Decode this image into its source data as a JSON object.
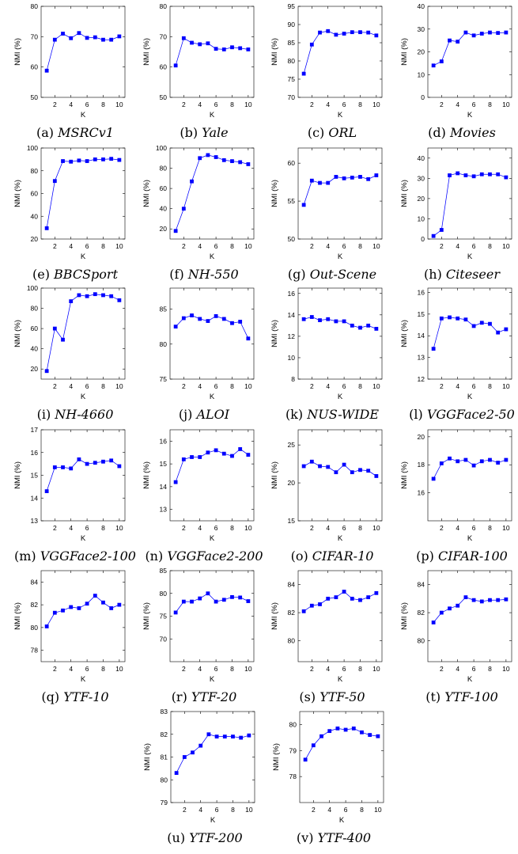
{
  "chart_data": [
    {
      "type": "line",
      "caption_label": "(a)",
      "caption_name": "MSRCv1",
      "xlabel": "K",
      "ylabel": "NMI (%)",
      "x": [
        1,
        2,
        3,
        4,
        5,
        6,
        7,
        8,
        9,
        10
      ],
      "values": [
        58.8,
        69.0,
        71.0,
        69.5,
        71.2,
        69.6,
        69.8,
        69.0,
        69.0,
        70.1
      ],
      "ylim": [
        50,
        80
      ],
      "yticks": [
        "50",
        "60",
        "70",
        "80"
      ],
      "xticks": [
        "2",
        "4",
        "6",
        "8",
        "10"
      ]
    },
    {
      "type": "line",
      "caption_label": "(b)",
      "caption_name": "Yale",
      "xlabel": "K",
      "ylabel": "NMI (%)",
      "x": [
        1,
        2,
        3,
        4,
        5,
        6,
        7,
        8,
        9,
        10
      ],
      "values": [
        60.5,
        69.5,
        68.0,
        67.5,
        67.8,
        66.0,
        65.8,
        66.5,
        66.2,
        65.8
      ],
      "ylim": [
        50,
        80
      ],
      "yticks": [
        "50",
        "60",
        "70",
        "80"
      ],
      "xticks": [
        "2",
        "4",
        "6",
        "8",
        "10"
      ]
    },
    {
      "type": "line",
      "caption_label": "(c)",
      "caption_name": "ORL",
      "xlabel": "K",
      "ylabel": "NMI (%)",
      "x": [
        1,
        2,
        3,
        4,
        5,
        6,
        7,
        8,
        9,
        10
      ],
      "values": [
        76.5,
        84.5,
        87.8,
        88.2,
        87.2,
        87.5,
        87.9,
        87.9,
        87.8,
        87.0
      ],
      "ylim": [
        70,
        95
      ],
      "yticks": [
        "70",
        "75",
        "80",
        "85",
        "90",
        "95"
      ],
      "xticks": [
        "2",
        "4",
        "6",
        "8",
        "10"
      ]
    },
    {
      "type": "line",
      "caption_label": "(d)",
      "caption_name": "Movies",
      "xlabel": "K",
      "ylabel": "NMI (%)",
      "x": [
        1,
        2,
        3,
        4,
        5,
        6,
        7,
        8,
        9,
        10
      ],
      "values": [
        14.0,
        15.8,
        25.0,
        24.5,
        28.5,
        27.2,
        28.0,
        28.5,
        28.3,
        28.5
      ],
      "ylim": [
        0,
        40
      ],
      "yticks": [
        "0",
        "10",
        "20",
        "30",
        "40"
      ],
      "xticks": [
        "2",
        "4",
        "6",
        "8",
        "10"
      ]
    },
    {
      "type": "line",
      "caption_label": "(e)",
      "caption_name": "BBCSport",
      "xlabel": "K",
      "ylabel": "NMI (%)",
      "x": [
        1,
        2,
        3,
        4,
        5,
        6,
        7,
        8,
        9,
        10
      ],
      "values": [
        29.5,
        71.0,
        88.5,
        88.0,
        89.0,
        88.5,
        90.0,
        90.0,
        90.5,
        89.5
      ],
      "ylim": [
        20,
        100
      ],
      "yticks": [
        "20",
        "40",
        "60",
        "80",
        "100"
      ],
      "xticks": [
        "2",
        "4",
        "6",
        "8",
        "10"
      ]
    },
    {
      "type": "line",
      "caption_label": "(f)",
      "caption_name": "NH-550",
      "xlabel": "K",
      "ylabel": "NMI (%)",
      "x": [
        1,
        2,
        3,
        4,
        5,
        6,
        7,
        8,
        9,
        10
      ],
      "values": [
        18.0,
        40.0,
        67.0,
        90.0,
        93.0,
        91.0,
        88.0,
        87.0,
        86.0,
        84.0
      ],
      "ylim": [
        10,
        100
      ],
      "yticks": [
        "20",
        "40",
        "60",
        "80",
        "100"
      ],
      "xticks": [
        "2",
        "4",
        "6",
        "8",
        "10"
      ]
    },
    {
      "type": "line",
      "caption_label": "(g)",
      "caption_name": "Out-Scene",
      "xlabel": "K",
      "ylabel": "NMI (%)",
      "x": [
        1,
        2,
        3,
        4,
        5,
        6,
        7,
        8,
        9,
        10
      ],
      "values": [
        54.5,
        57.7,
        57.4,
        57.4,
        58.2,
        58.0,
        58.1,
        58.2,
        57.9,
        58.4
      ],
      "ylim": [
        50,
        62
      ],
      "yticks": [
        "50",
        "55",
        "60"
      ],
      "xticks": [
        "2",
        "4",
        "6",
        "8",
        "10"
      ]
    },
    {
      "type": "line",
      "caption_label": "(h)",
      "caption_name": "Citeseer",
      "xlabel": "K",
      "ylabel": "NMI (%)",
      "x": [
        1,
        2,
        3,
        4,
        5,
        6,
        7,
        8,
        9,
        10
      ],
      "values": [
        1.5,
        4.5,
        31.5,
        32.5,
        31.5,
        31.0,
        32.0,
        32.0,
        32.0,
        30.5
      ],
      "ylim": [
        0,
        45
      ],
      "yticks": [
        "0",
        "10",
        "20",
        "30",
        "40"
      ],
      "xticks": [
        "2",
        "4",
        "6",
        "8",
        "10"
      ]
    },
    {
      "type": "line",
      "caption_label": "(i)",
      "caption_name": "NH-4660",
      "xlabel": "K",
      "ylabel": "NMI (%)",
      "x": [
        1,
        2,
        3,
        4,
        5,
        6,
        7,
        8,
        9,
        10
      ],
      "values": [
        18.0,
        60.0,
        49.0,
        87.0,
        93.0,
        92.0,
        94.0,
        93.0,
        92.0,
        88.0
      ],
      "ylim": [
        10,
        100
      ],
      "yticks": [
        "20",
        "40",
        "60",
        "80",
        "100"
      ],
      "xticks": [
        "2",
        "4",
        "6",
        "8",
        "10"
      ]
    },
    {
      "type": "line",
      "caption_label": "(j)",
      "caption_name": "ALOI",
      "xlabel": "K",
      "ylabel": "",
      "x": [
        1,
        2,
        3,
        4,
        5,
        6,
        7,
        8,
        9,
        10
      ],
      "values": [
        82.5,
        83.7,
        84.1,
        83.6,
        83.3,
        84.0,
        83.6,
        83.0,
        83.2,
        80.8
      ],
      "ylim": [
        75,
        88
      ],
      "yticks": [
        "75",
        "80",
        "85"
      ],
      "xticks": [
        "2",
        "4",
        "6",
        "8",
        "10"
      ]
    },
    {
      "type": "line",
      "caption_label": "(k)",
      "caption_name": "NUS-WIDE",
      "xlabel": "K",
      "ylabel": "NMI (%)",
      "x": [
        1,
        2,
        3,
        4,
        5,
        6,
        7,
        8,
        9,
        10
      ],
      "values": [
        13.6,
        13.8,
        13.5,
        13.6,
        13.4,
        13.4,
        13.0,
        12.8,
        13.0,
        12.7
      ],
      "ylim": [
        8,
        16.5
      ],
      "yticks": [
        "8",
        "10",
        "12",
        "14",
        "16"
      ],
      "xticks": [
        "2",
        "4",
        "6",
        "8",
        "10"
      ]
    },
    {
      "type": "line",
      "caption_label": "(l)",
      "caption_name": "VGGFace2-50",
      "xlabel": "K",
      "ylabel": "NMI (%)",
      "x": [
        1,
        2,
        3,
        4,
        5,
        6,
        7,
        8,
        9,
        10
      ],
      "values": [
        13.4,
        14.8,
        14.85,
        14.8,
        14.75,
        14.45,
        14.6,
        14.55,
        14.15,
        14.3
      ],
      "ylim": [
        12,
        16.2
      ],
      "yticks": [
        "12",
        "13",
        "14",
        "15",
        "16"
      ],
      "xticks": [
        "2",
        "4",
        "6",
        "8",
        "10"
      ]
    },
    {
      "type": "line",
      "caption_label": "(m)",
      "caption_name": "VGGFace2-100",
      "xlabel": "K",
      "ylabel": "NMI (%)",
      "x": [
        1,
        2,
        3,
        4,
        5,
        6,
        7,
        8,
        9,
        10
      ],
      "values": [
        14.3,
        15.35,
        15.35,
        15.3,
        15.7,
        15.5,
        15.55,
        15.6,
        15.65,
        15.4
      ],
      "ylim": [
        13,
        17
      ],
      "yticks": [
        "13",
        "14",
        "15",
        "16",
        "17"
      ],
      "xticks": [
        "2",
        "4",
        "6",
        "8",
        "10"
      ]
    },
    {
      "type": "line",
      "caption_label": "(n)",
      "caption_name": "VGGFace2-200",
      "xlabel": "K",
      "ylabel": "NMI (%)",
      "x": [
        1,
        2,
        3,
        4,
        5,
        6,
        7,
        8,
        9,
        10
      ],
      "values": [
        14.2,
        15.2,
        15.3,
        15.3,
        15.5,
        15.6,
        15.45,
        15.35,
        15.65,
        15.4
      ],
      "ylim": [
        12.5,
        16.5
      ],
      "yticks": [
        "13",
        "14",
        "15",
        "16"
      ],
      "xticks": [
        "2",
        "4",
        "6",
        "8",
        "10"
      ]
    },
    {
      "type": "line",
      "caption_label": "(o)",
      "caption_name": "CIFAR-10",
      "xlabel": "K",
      "ylabel": "NMI (%)",
      "x": [
        1,
        2,
        3,
        4,
        5,
        6,
        7,
        8,
        9,
        10
      ],
      "values": [
        22.2,
        22.8,
        22.2,
        22.1,
        21.4,
        22.4,
        21.4,
        21.7,
        21.6,
        20.9
      ],
      "ylim": [
        15,
        27
      ],
      "yticks": [
        "15",
        "20",
        "25"
      ],
      "xticks": [
        "2",
        "4",
        "6",
        "8",
        "10"
      ]
    },
    {
      "type": "line",
      "caption_label": "(p)",
      "caption_name": "CIFAR-100",
      "xlabel": "K",
      "ylabel": "NMI (%)",
      "x": [
        1,
        2,
        3,
        4,
        5,
        6,
        7,
        8,
        9,
        10
      ],
      "values": [
        17.0,
        18.1,
        18.45,
        18.25,
        18.35,
        17.95,
        18.25,
        18.35,
        18.15,
        18.35
      ],
      "ylim": [
        14,
        20.5
      ],
      "yticks": [
        "16",
        "18",
        "20"
      ],
      "xticks": [
        "2",
        "4",
        "6",
        "8",
        "10"
      ]
    },
    {
      "type": "line",
      "caption_label": "(q)",
      "caption_name": "YTF-10",
      "xlabel": "K",
      "ylabel": "NMI (%)",
      "x": [
        1,
        2,
        3,
        4,
        5,
        6,
        7,
        8,
        9,
        10
      ],
      "values": [
        80.1,
        81.3,
        81.5,
        81.8,
        81.7,
        82.1,
        82.8,
        82.2,
        81.7,
        82.0
      ],
      "ylim": [
        77,
        85
      ],
      "yticks": [
        "78",
        "80",
        "82",
        "84"
      ],
      "xticks": [
        "2",
        "4",
        "6",
        "8",
        "10"
      ]
    },
    {
      "type": "line",
      "caption_label": "(r)",
      "caption_name": "YTF-20",
      "xlabel": "K",
      "ylabel": "NMI (%)",
      "x": [
        1,
        2,
        3,
        4,
        5,
        6,
        7,
        8,
        9,
        10
      ],
      "values": [
        75.8,
        78.2,
        78.2,
        78.9,
        80.0,
        78.2,
        78.6,
        79.2,
        79.1,
        78.3
      ],
      "ylim": [
        65,
        85
      ],
      "yticks": [
        "70",
        "75",
        "80",
        "85"
      ],
      "xticks": [
        "2",
        "4",
        "6",
        "8",
        "10"
      ]
    },
    {
      "type": "line",
      "caption_label": "(s)",
      "caption_name": "YTF-50",
      "xlabel": "K",
      "ylabel": "NMI (%)",
      "x": [
        1,
        2,
        3,
        4,
        5,
        6,
        7,
        8,
        9,
        10
      ],
      "values": [
        82.1,
        82.5,
        82.6,
        83.0,
        83.1,
        83.5,
        83.0,
        82.9,
        83.1,
        83.4
      ],
      "ylim": [
        78.5,
        85
      ],
      "yticks": [
        "80",
        "82",
        "84"
      ],
      "xticks": [
        "2",
        "4",
        "6",
        "8",
        "10"
      ]
    },
    {
      "type": "line",
      "caption_label": "(t)",
      "caption_name": "YTF-100",
      "xlabel": "K",
      "ylabel": "NMI (%)",
      "x": [
        1,
        2,
        3,
        4,
        5,
        6,
        7,
        8,
        9,
        10
      ],
      "values": [
        81.3,
        82.0,
        82.3,
        82.5,
        83.1,
        82.9,
        82.8,
        82.9,
        82.9,
        82.95
      ],
      "ylim": [
        78.5,
        85
      ],
      "yticks": [
        "80",
        "82",
        "84"
      ],
      "xticks": [
        "2",
        "4",
        "6",
        "8",
        "10"
      ]
    },
    {
      "type": "line",
      "caption_label": "(u)",
      "caption_name": "YTF-200",
      "xlabel": "K",
      "ylabel": "NMI (%)",
      "x": [
        1,
        2,
        3,
        4,
        5,
        6,
        7,
        8,
        9,
        10
      ],
      "values": [
        80.3,
        81.0,
        81.2,
        81.5,
        82.0,
        81.9,
        81.9,
        81.9,
        81.85,
        81.95
      ],
      "ylim": [
        79,
        83
      ],
      "yticks": [
        "79",
        "80",
        "81",
        "82",
        "83"
      ],
      "xticks": [
        "2",
        "4",
        "6",
        "8",
        "10"
      ]
    },
    {
      "type": "line",
      "caption_label": "(v)",
      "caption_name": "YTF-400",
      "xlabel": "K",
      "ylabel": "NMI (%)",
      "x": [
        1,
        2,
        3,
        4,
        5,
        6,
        7,
        8,
        9,
        10
      ],
      "values": [
        78.65,
        79.2,
        79.55,
        79.75,
        79.85,
        79.8,
        79.85,
        79.7,
        79.6,
        79.55
      ],
      "ylim": [
        77,
        80.5
      ],
      "yticks": [
        "78",
        "79",
        "80"
      ],
      "xticks": [
        "2",
        "4",
        "6",
        "8",
        "10"
      ]
    }
  ]
}
